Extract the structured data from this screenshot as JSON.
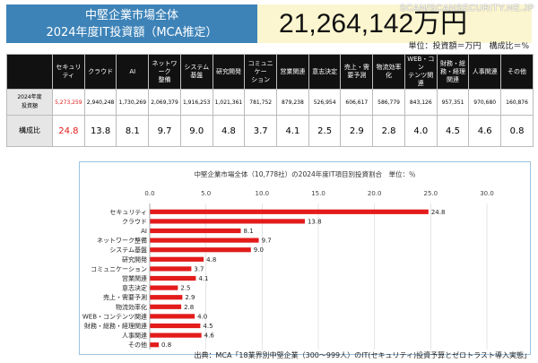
{
  "header": {
    "title_line1": "中堅企業市場全体",
    "title_line2": "2024年度IT投資額（MCA推定）",
    "total": "21,264,142万円",
    "unit_note": "単位：投資額＝万円　構成比＝%"
  },
  "watermark": "SCAN/SCANSECURITY.NE.JP",
  "table": {
    "row_headers": {
      "amount": "2024年度\n投資額",
      "share": "構成比"
    },
    "columns": [
      {
        "label": "セキュリティ",
        "amount": "5,273,259",
        "share": "24.8",
        "highlight": true
      },
      {
        "label": "クラウド",
        "amount": "2,940,248",
        "share": "13.8"
      },
      {
        "label": "AI",
        "amount": "1,730,269",
        "share": "8.1"
      },
      {
        "label": "ネットワーク\n整備",
        "amount": "2,069,379",
        "share": "9.7"
      },
      {
        "label": "システム基盤",
        "amount": "1,916,253",
        "share": "9.0"
      },
      {
        "label": "研究開発",
        "amount": "1,021,361",
        "share": "4.8"
      },
      {
        "label": "コミュニケー\nション",
        "amount": "781,752",
        "share": "3.7"
      },
      {
        "label": "営業関連",
        "amount": "879,238",
        "share": "4.1"
      },
      {
        "label": "意志決定",
        "amount": "526,954",
        "share": "2.5"
      },
      {
        "label": "売上・需\n要予測",
        "amount": "606,617",
        "share": "2.9"
      },
      {
        "label": "物流効率\n化",
        "amount": "586,779",
        "share": "2.8"
      },
      {
        "label": "WEB・コン\nテンツ関連",
        "amount": "843,126",
        "share": "4.0"
      },
      {
        "label": "財務・総\n務・経理\n関連",
        "amount": "957,351",
        "share": "4.5"
      },
      {
        "label": "人事関連",
        "amount": "970,680",
        "share": "4.6"
      },
      {
        "label": "その他",
        "amount": "160,876",
        "share": "0.8"
      }
    ]
  },
  "chart_data": {
    "type": "bar",
    "orientation": "horizontal",
    "title": "中堅企業市場全体（10,778社）の2024年度IT項目別投資割合　単位：％",
    "categories": [
      "セキュリティ",
      "クラウド",
      "AI",
      "ネットワーク整備",
      "システム基盤",
      "研究開発",
      "コミュニケーション",
      "営業関連",
      "意志決定",
      "売上・需要予測",
      "物流効率化",
      "WEB・コンテンツ関連",
      "財務・総務・経理関連",
      "人事関連",
      "その他"
    ],
    "values": [
      24.8,
      13.8,
      8.1,
      9.7,
      9.0,
      4.8,
      3.7,
      4.1,
      2.5,
      2.9,
      2.8,
      4.0,
      4.5,
      4.6,
      0.8
    ],
    "value_labels": [
      "24.8",
      "13.8",
      "8.1",
      "9.7",
      "9.0",
      "4.8",
      "3.7",
      "4.1",
      "2.5",
      "2.9",
      "2.8",
      "4.0",
      "4.5",
      "4.6",
      "0.8"
    ],
    "xticks": [
      "0.0",
      "5.0",
      "10.0",
      "15.0",
      "20.0",
      "25.0",
      "30.0"
    ],
    "xlim": [
      0,
      30
    ],
    "bar_color": "#e31b1b",
    "grid": true,
    "legend": "none"
  },
  "source": "出典：MCA「18業界別中堅企業（300～999人）のIT(セキュリティ)投資予算とゼロトラスト導入実態」"
}
